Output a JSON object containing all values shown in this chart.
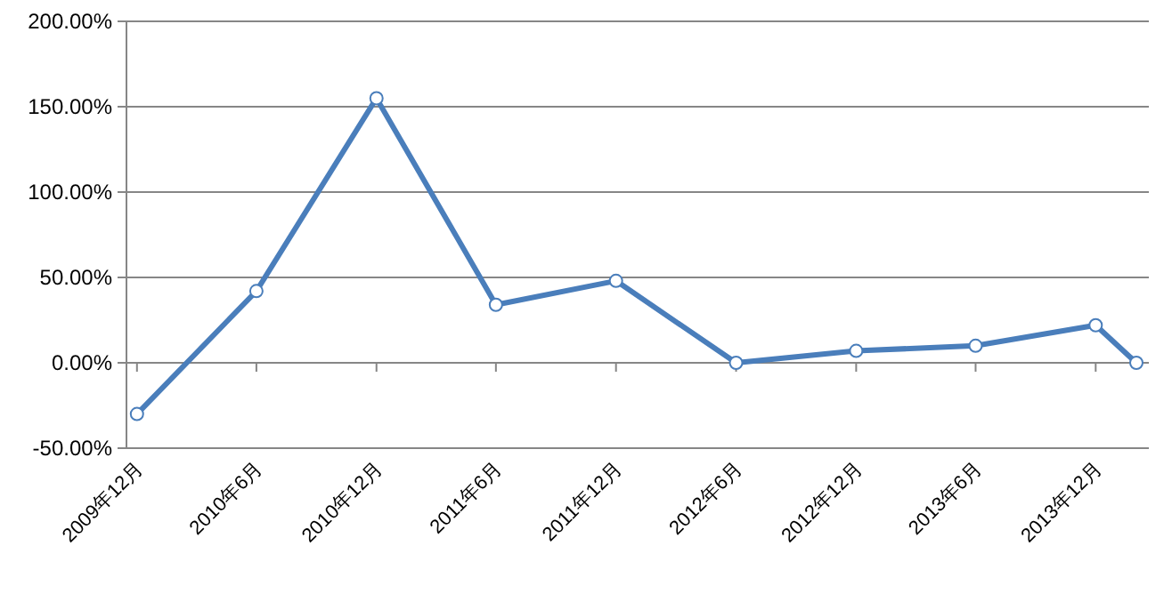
{
  "chart_data": {
    "type": "line",
    "x": [
      "2009-12",
      "2010-06",
      "2010-12",
      "2011-06",
      "2011-12",
      "2012-06",
      "2012-12",
      "2013-06",
      "2013-12",
      "2014-02"
    ],
    "series": [
      {
        "color": "#4a7ebb",
        "values": [
          -30,
          42,
          155,
          34,
          48,
          0,
          7,
          10,
          22,
          0
        ]
      }
    ],
    "xlim": [
      "2009-11-15",
      "2014-02-20"
    ],
    "xticks": [
      {
        "value": "2009-12",
        "label": "2009年12月"
      },
      {
        "value": "2010-06",
        "label": "2010年6月"
      },
      {
        "value": "2010-12",
        "label": "2010年12月"
      },
      {
        "value": "2011-06",
        "label": "2011年6月"
      },
      {
        "value": "2011-12",
        "label": "2011年12月"
      },
      {
        "value": "2012-06",
        "label": "2012年6月"
      },
      {
        "value": "2012-12",
        "label": "2012年12月"
      },
      {
        "value": "2013-06",
        "label": "2013年6月"
      },
      {
        "value": "2013-12",
        "label": "2013年12月"
      }
    ],
    "ylim": [
      -50,
      200
    ],
    "yticks": [
      {
        "value": -50,
        "label": "-50.00%"
      },
      {
        "value": 0,
        "label": "0.00%"
      },
      {
        "value": 50,
        "label": "50.00%"
      },
      {
        "value": 100,
        "label": "100.00%"
      },
      {
        "value": 150,
        "label": "150.00%"
      },
      {
        "value": 200,
        "label": "200.00%"
      }
    ],
    "grid": "y",
    "marker": "circle",
    "line_style": "solid"
  }
}
